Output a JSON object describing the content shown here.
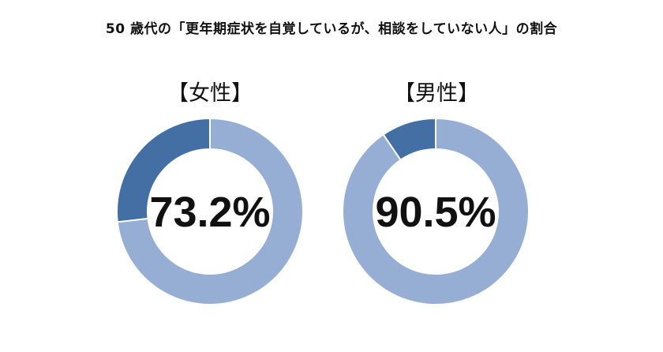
{
  "title": "50 歳代の「更年期症状を自覚しているが、相談をしていない人」の割合",
  "colors": {
    "primary": "#97aed4",
    "secondary": "#436fa4"
  },
  "chart_data": [
    {
      "type": "pie",
      "label": "【女性】",
      "center_label": "73.2%",
      "slices": [
        {
          "value": 73.2,
          "color": "#97aed4"
        },
        {
          "value": 26.8,
          "color": "#436fa4"
        }
      ]
    },
    {
      "type": "pie",
      "label": "【男性】",
      "center_label": "90.5%",
      "slices": [
        {
          "value": 90.5,
          "color": "#97aed4"
        },
        {
          "value": 9.5,
          "color": "#436fa4"
        }
      ]
    }
  ]
}
